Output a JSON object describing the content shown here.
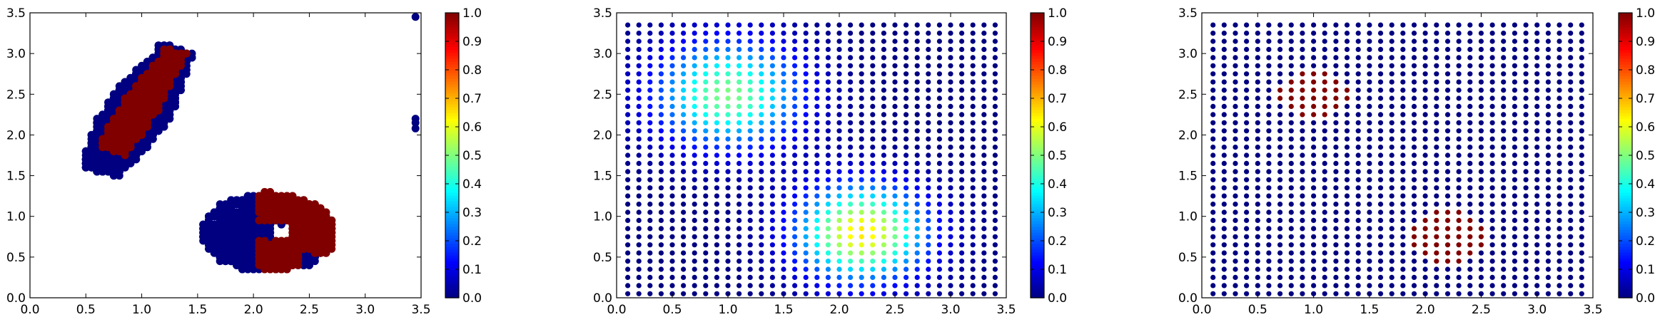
{
  "chart_data": [
    {
      "type": "scatter",
      "xlim": [
        0,
        3.5
      ],
      "ylim": [
        0,
        3.5
      ],
      "xticks": [
        "0.0",
        "0.5",
        "1.0",
        "1.5",
        "2.0",
        "2.5",
        "3.0",
        "3.5"
      ],
      "yticks": [
        "0.0",
        "0.5",
        "1.0",
        "1.5",
        "2.0",
        "2.5",
        "3.0",
        "3.5"
      ],
      "colorbar": {
        "range": [
          0,
          1
        ],
        "ticks": [
          "0.0",
          "0.1",
          "0.2",
          "0.3",
          "0.4",
          "0.5",
          "0.6",
          "0.7",
          "0.8",
          "0.9",
          "1.0"
        ],
        "colormap": "jet"
      },
      "description_of_values": "Binary-valued scatter: points from two elongated clusters; value 1 (dark red) in cluster cores, value 0 (dark blue) at fringes",
      "clusters": [
        {
          "value_fringe": 0,
          "value_core": 1,
          "x_range": [
            0.4,
            1.55
          ],
          "y_range": [
            1.3,
            3.3
          ],
          "core_x_range": [
            0.75,
            1.3
          ],
          "core_y_range": [
            1.75,
            3.25
          ]
        },
        {
          "value_fringe": 0,
          "value_core": 1,
          "x_range": [
            1.55,
            2.7
          ],
          "y_range": [
            0.35,
            1.3
          ],
          "core_x_range": [
            2.05,
            2.6
          ],
          "core_y_range": [
            0.4,
            1.15
          ],
          "hole_center": [
            2.25,
            0.8
          ]
        }
      ],
      "outliers": [
        [
          3.45,
          3.45
        ],
        [
          3.45,
          2.2
        ],
        [
          3.45,
          2.15
        ],
        [
          3.45,
          2.08
        ]
      ]
    },
    {
      "type": "scatter",
      "xlim": [
        0,
        3.5
      ],
      "ylim": [
        0,
        3.5
      ],
      "xticks": [
        "0.0",
        "0.5",
        "1.0",
        "1.5",
        "2.0",
        "2.5",
        "3.0",
        "3.5"
      ],
      "yticks": [
        "0.0",
        "0.5",
        "1.0",
        "1.5",
        "2.0",
        "2.5",
        "3.0",
        "3.5"
      ],
      "colorbar": {
        "range": [
          0,
          1
        ],
        "ticks": [
          "0.0",
          "0.1",
          "0.2",
          "0.3",
          "0.4",
          "0.5",
          "0.6",
          "0.7",
          "0.8",
          "0.9",
          "1.0"
        ],
        "colormap": "jet"
      },
      "grid": {
        "x_start": 0.1,
        "x_end": 3.4,
        "y_start": 0.05,
        "y_end": 3.4,
        "step": 0.1
      },
      "description_of_values": "Regular grid of points colored by a smooth function with two Gaussian bumps",
      "peaks": [
        {
          "center": [
            1.0,
            2.5
          ],
          "amplitude": 0.5,
          "sigma": 0.45
        },
        {
          "center": [
            2.2,
            0.8
          ],
          "amplitude": 0.65,
          "sigma": 0.4
        }
      ]
    },
    {
      "type": "scatter",
      "xlim": [
        0,
        3.5
      ],
      "ylim": [
        0,
        3.5
      ],
      "xticks": [
        "0.0",
        "0.5",
        "1.0",
        "1.5",
        "2.0",
        "2.5",
        "3.0",
        "3.5"
      ],
      "yticks": [
        "0.0",
        "0.5",
        "1.0",
        "1.5",
        "2.0",
        "2.5",
        "3.0",
        "3.5"
      ],
      "colorbar": {
        "range": [
          0,
          1
        ],
        "ticks": [
          "0.0",
          "0.1",
          "0.2",
          "0.3",
          "0.4",
          "0.5",
          "0.6",
          "0.7",
          "0.8",
          "0.9",
          "1.0"
        ],
        "colormap": "jet"
      },
      "grid": {
        "x_start": 0.1,
        "x_end": 3.4,
        "y_start": 0.05,
        "y_end": 3.4,
        "step": 0.1
      },
      "description_of_values": "Regular grid of points, value 1 (dark red) inside two small disks, 0 elsewhere",
      "regions": [
        {
          "center": [
            1.0,
            2.5
          ],
          "radius": 0.32,
          "value": 1
        },
        {
          "center": [
            2.2,
            0.75
          ],
          "radius": 0.35,
          "value": 1
        }
      ]
    }
  ]
}
